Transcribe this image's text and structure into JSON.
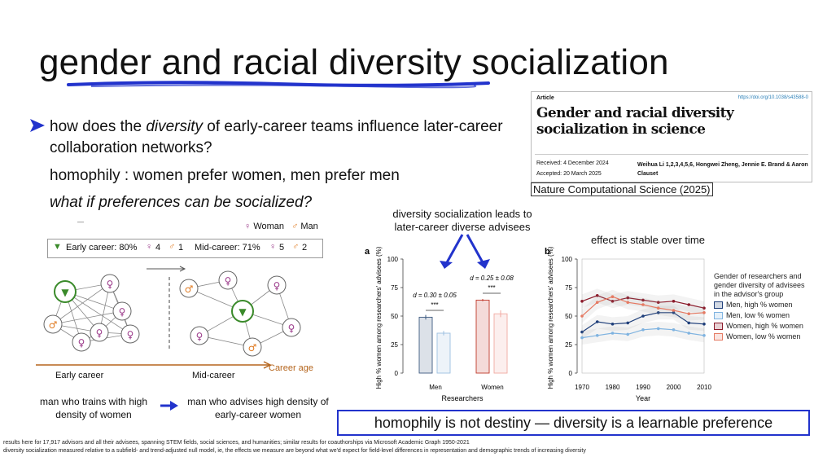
{
  "slide": {
    "title": "gender and racial diversity socialization",
    "questions": [
      {
        "pre": "how does the ",
        "em": "diversity",
        "post": " of early-career teams influence later-career collaboration networks?"
      },
      {
        "text": "homophily : women prefer women, men prefer men"
      },
      {
        "text": "what if preferences can be socialized?"
      }
    ],
    "dash": "—",
    "note_a": "diversity socialization leads to later-career diverse advisees",
    "note_b": "effect is stable over time",
    "takeaway": "homophily is not destiny — diversity is a learnable preference",
    "footnote1": "results here for 17,917 advisors and all their advisees, spanning STEM fields, social sciences, and humanities; similar results for coauthorships via Microsoft Academic Graph 1950-2021",
    "footnote2": "diversity socialization measured relative to a subfield- and trend-adjusted null model, ie, the effects we measure are beyond what we'd expect for field-level differences in representation and demographic trends of increasing diversity",
    "accent_color": "#2233cc"
  },
  "article": {
    "kind": "Article",
    "doi": "https://doi.org/10.1038/s43588-0",
    "title": "Gender and racial diversity socialization in science",
    "received": "Received: 4 December 2024",
    "accepted": "Accepted: 20 March 2025",
    "authors": "Weihua Li 1,2,3,4,5,6, Hongwei Zheng, Jennie E. Brand & Aaron Clauset",
    "journal": "Nature Computational Science (2025)"
  },
  "diagram": {
    "legend_woman": "Woman",
    "legend_man": "Man",
    "early_label": "Early career: 80%",
    "early_w": "4",
    "early_m": "1",
    "mid_label": "Mid-career: 71%",
    "mid_w": "5",
    "mid_m": "2",
    "early_caption": "Early career",
    "mid_caption": "Mid-career",
    "age_caption": "Career age",
    "label_man": "man who trains with high density of women",
    "label_adv": "man who advises high density of early-career women",
    "colors": {
      "woman": "#9b3a8a",
      "man": "#e07b22",
      "focal": "#3a8a2a"
    }
  },
  "chart_data": [
    {
      "type": "bar",
      "panel": "a",
      "categories": [
        "Men",
        "Women"
      ],
      "series": [
        {
          "name": "high % women",
          "values": [
            49,
            64
          ]
        },
        {
          "name": "low % women",
          "values": [
            35,
            52
          ]
        }
      ],
      "errors": [
        [
          2,
          2
        ],
        [
          1,
          3
        ]
      ],
      "ylim": [
        0,
        100
      ],
      "yticks": [
        0,
        25,
        50,
        75,
        100
      ],
      "xlabel": "Researchers",
      "ylabel": "High % women among researchers' advisees (%)",
      "annotations": [
        "d = 0.30 ± 0.05",
        "d = 0.25 ± 0.08"
      ],
      "sig": "***",
      "colors": [
        "#3d5a80",
        "#9bbfe0",
        "#c0392b",
        "#f1a9a0"
      ]
    },
    {
      "type": "line",
      "panel": "b",
      "x": [
        1970,
        1975,
        1980,
        1985,
        1990,
        1995,
        2000,
        2005,
        2010
      ],
      "series": [
        {
          "name": "Men, high % women",
          "values": [
            36,
            45,
            43,
            44,
            50,
            53,
            53,
            44,
            43
          ]
        },
        {
          "name": "Men, low % women",
          "values": [
            31,
            33,
            35,
            34,
            38,
            39,
            38,
            35,
            33
          ]
        },
        {
          "name": "Women, high % women",
          "values": [
            63,
            68,
            63,
            66,
            64,
            62,
            63,
            60,
            57
          ]
        },
        {
          "name": "Women, low % women",
          "values": [
            50,
            62,
            67,
            62,
            60,
            57,
            55,
            52,
            53
          ]
        }
      ],
      "ylim": [
        0,
        100
      ],
      "yticks": [
        0,
        25,
        50,
        75,
        100
      ],
      "xticks": [
        1970,
        1980,
        1990,
        2000,
        2010
      ],
      "xlabel": "Year",
      "ylabel": "High % women among researchers' advisees (%)",
      "legend_title": "Gender of researchers and gender diversity of advisees in the advisor's group",
      "colors": [
        "#1f3f7a",
        "#7fb3e0",
        "#8b1a2a",
        "#e57a63"
      ]
    }
  ]
}
